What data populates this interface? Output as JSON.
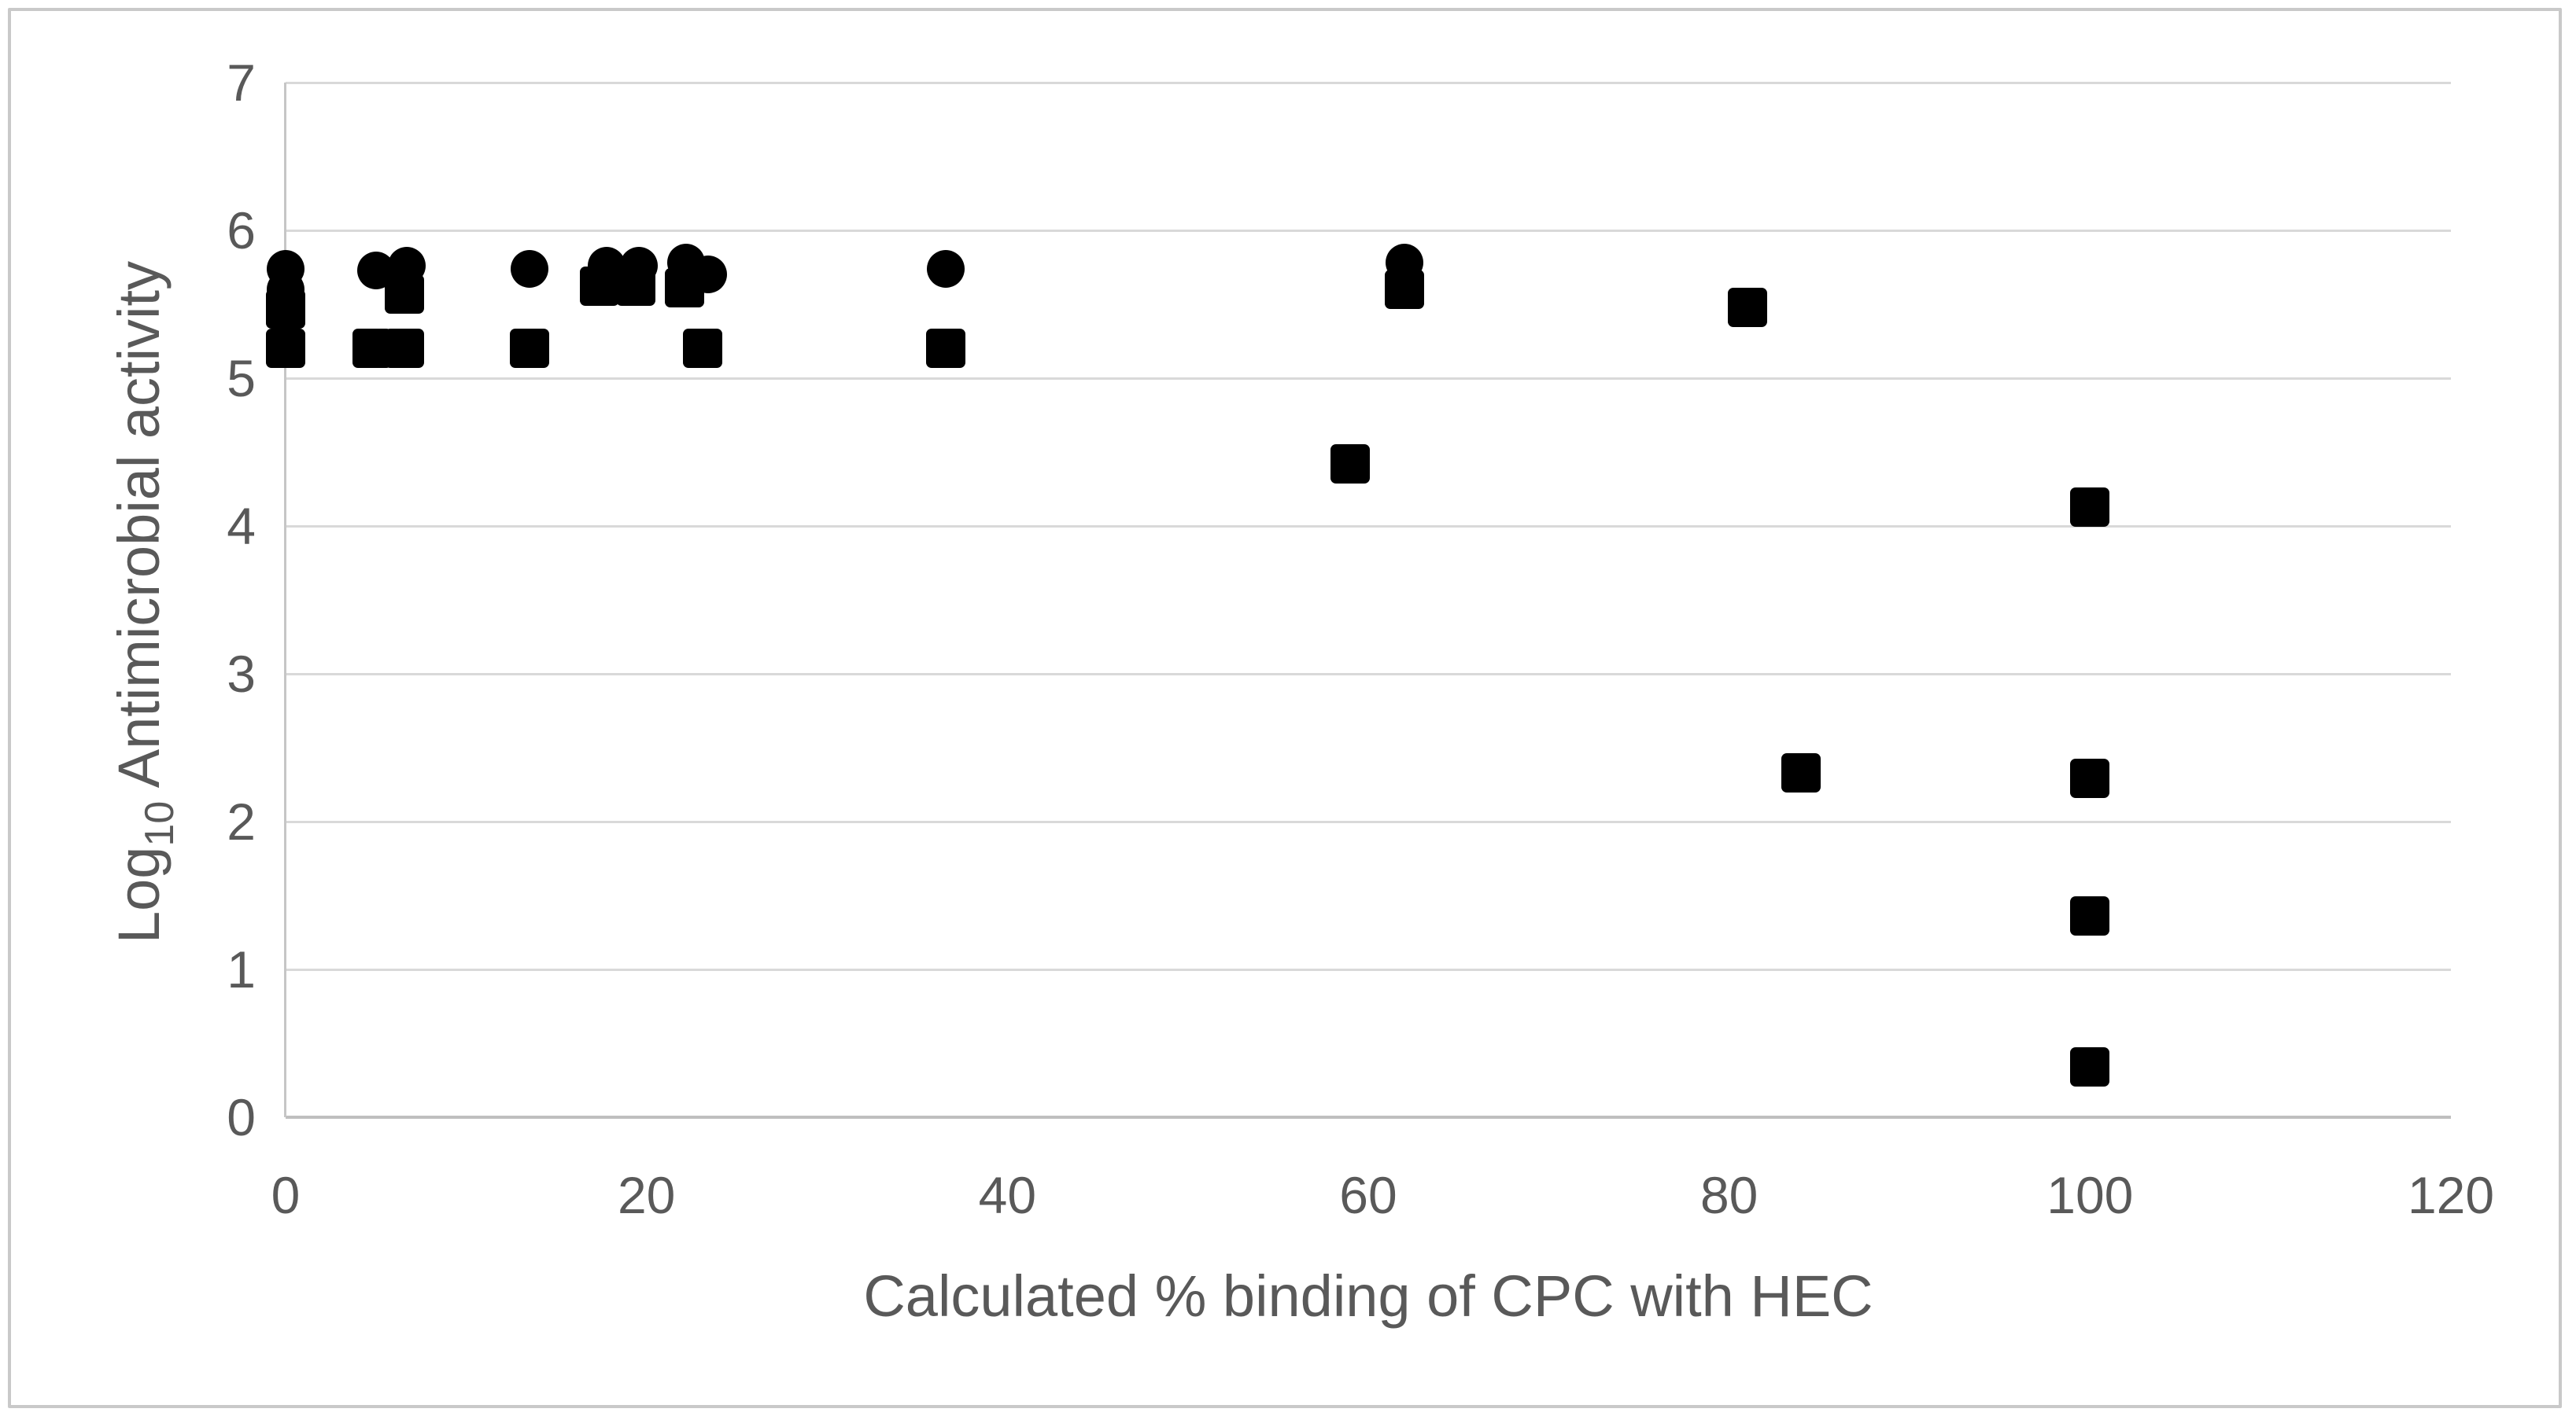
{
  "figure": {
    "background": "#ffffff",
    "border_color": "#c9c9c9",
    "text_color": "#595959",
    "gridline_color": "#d9d9d9",
    "axis_line_color": "#bfbfbf",
    "marker_color": "#000000"
  },
  "chart_data": {
    "type": "scatter",
    "title": "",
    "xlabel": "Calculated % binding of CPC with HEC",
    "ylabel": {
      "prefix": "Log",
      "subscript": "10",
      "suffix": " Antimicrobial activity"
    },
    "xlim": [
      0,
      120
    ],
    "ylim": [
      0,
      7
    ],
    "x_ticks": [
      0,
      20,
      40,
      60,
      80,
      100,
      120
    ],
    "y_ticks": [
      0,
      1,
      2,
      3,
      4,
      5,
      6,
      7
    ],
    "grid": "horizontal-only",
    "legend": "none",
    "series": [
      {
        "name": "circle-markers",
        "marker": "circle",
        "color": "#000000",
        "points": [
          [
            0,
            5.74
          ],
          [
            0,
            5.6
          ],
          [
            5,
            5.73
          ],
          [
            6.7,
            5.76
          ],
          [
            13.5,
            5.74
          ],
          [
            17.8,
            5.76
          ],
          [
            19.6,
            5.76
          ],
          [
            22.2,
            5.78
          ],
          [
            23.4,
            5.7
          ],
          [
            36.6,
            5.74
          ],
          [
            62,
            5.78
          ]
        ]
      },
      {
        "name": "square-markers",
        "marker": "square",
        "color": "#000000",
        "points": [
          [
            0,
            5.47
          ],
          [
            0,
            5.2
          ],
          [
            4.8,
            5.2
          ],
          [
            6.6,
            5.2
          ],
          [
            6.6,
            5.57
          ],
          [
            13.5,
            5.2
          ],
          [
            17.4,
            5.62
          ],
          [
            19.4,
            5.62
          ],
          [
            22.1,
            5.61
          ],
          [
            23.1,
            5.2
          ],
          [
            36.6,
            5.2
          ],
          [
            59,
            4.42
          ],
          [
            62,
            5.6
          ],
          [
            81,
            5.48
          ],
          [
            84,
            2.33
          ],
          [
            100,
            4.13
          ],
          [
            100,
            2.29
          ],
          [
            100,
            1.36
          ],
          [
            100,
            0.34
          ]
        ]
      }
    ]
  }
}
